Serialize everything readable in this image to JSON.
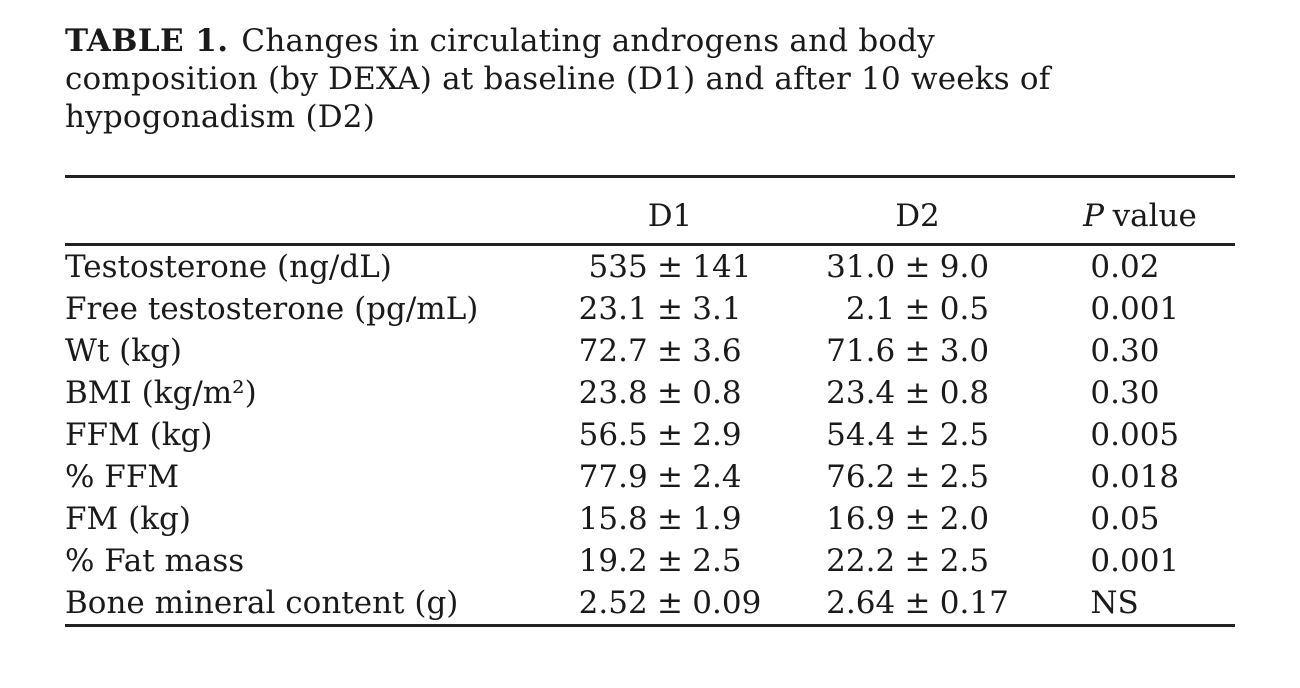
{
  "caption": {
    "label": "TABLE 1.",
    "lines": [
      "Changes in circulating androgens and body",
      "composition (by DEXA) at baseline (D1) and after 10 weeks of",
      "hypogonadism (D2)"
    ]
  },
  "table": {
    "pm": "±",
    "columns": {
      "d1": "D1",
      "d2": "D2"
    },
    "p_header": {
      "italic": "P",
      "rest": "value"
    },
    "rows": [
      {
        "label": "Testosterone (ng/dL)",
        "d1": [
          "535",
          "141"
        ],
        "d2": [
          "31.0",
          "9.0"
        ],
        "p": "0.02"
      },
      {
        "label": "Free testosterone (pg/mL)",
        "d1": [
          "23.1",
          "3.1"
        ],
        "d2": [
          "2.1",
          "0.5"
        ],
        "p": "0.001"
      },
      {
        "label": "Wt (kg)",
        "d1": [
          "72.7",
          "3.6"
        ],
        "d2": [
          "71.6",
          "3.0"
        ],
        "p": "0.30"
      },
      {
        "label": "BMI (kg/m²)",
        "d1": [
          "23.8",
          "0.8"
        ],
        "d2": [
          "23.4",
          "0.8"
        ],
        "p": "0.30"
      },
      {
        "label": "FFM (kg)",
        "d1": [
          "56.5",
          "2.9"
        ],
        "d2": [
          "54.4",
          "2.5"
        ],
        "p": "0.005"
      },
      {
        "label": "% FFM",
        "d1": [
          "77.9",
          "2.4"
        ],
        "d2": [
          "76.2",
          "2.5"
        ],
        "p": "0.018"
      },
      {
        "label": "FM (kg)",
        "d1": [
          "15.8",
          "1.9"
        ],
        "d2": [
          "16.9",
          "2.0"
        ],
        "p": "0.05"
      },
      {
        "label": "% Fat mass",
        "d1": [
          "19.2",
          "2.5"
        ],
        "d2": [
          "22.2",
          "2.5"
        ],
        "p": "0.001"
      },
      {
        "label": "Bone mineral content (g)",
        "d1": [
          "2.52",
          "0.09"
        ],
        "d2": [
          "2.64",
          "0.17"
        ],
        "p": "NS"
      }
    ],
    "text_color": "#1a1a1a",
    "rule_color": "#222222"
  }
}
